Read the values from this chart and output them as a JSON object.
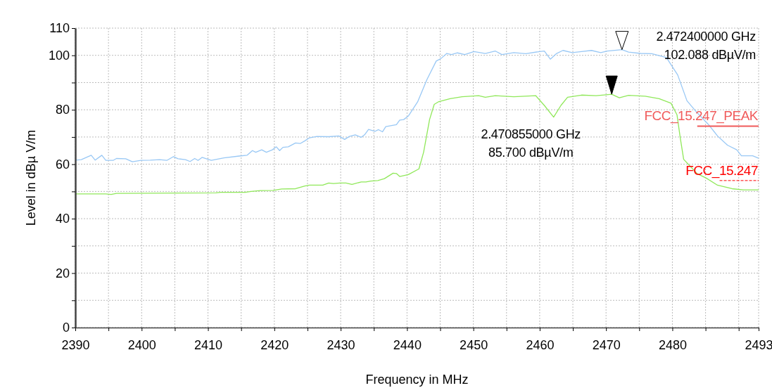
{
  "chart_data": {
    "type": "line",
    "xlabel": "Frequency in MHz",
    "ylabel": "Level in dBµ V/m",
    "xlim": [
      2390,
      2493
    ],
    "xticks": [
      2390,
      {
        "value": 2395,
        "label": null
      },
      2400,
      {
        "value": 2405,
        "label": null
      },
      2410,
      {
        "value": 2415,
        "label": null
      },
      2420,
      {
        "value": 2425,
        "label": null
      },
      2430,
      {
        "value": 2435,
        "label": null
      },
      2440,
      {
        "value": 2445,
        "label": null
      },
      2450,
      {
        "value": 2455,
        "label": null
      },
      2460,
      {
        "value": 2465,
        "label": null
      },
      2470,
      {
        "value": 2475,
        "label": null
      },
      2480,
      {
        "value": 2485,
        "label": null
      },
      {
        "value": 2490,
        "label": null
      },
      2493
    ],
    "ylim": [
      0,
      110
    ],
    "yticks": [
      0,
      {
        "value": 10,
        "label": null
      },
      20,
      {
        "value": 30,
        "label": null
      },
      40,
      {
        "value": 50,
        "label": null
      },
      60,
      {
        "value": 70,
        "label": null
      },
      80,
      {
        "value": 90,
        "label": null
      },
      100,
      110
    ],
    "grid": true,
    "marker": "none",
    "line_style": "solid",
    "series": [
      {
        "color": "#99c8f5",
        "x": [
          2390,
          2390.9,
          2392.4,
          2393.0,
          2394.0,
          2394.6,
          2395.7,
          2396.2,
          2397.6,
          2398.6,
          2399.9,
          2401.3,
          2402.7,
          2403.8,
          2404.8,
          2405.5,
          2406.6,
          2407.3,
          2408.0,
          2408.5,
          2409.1,
          2410.5,
          2412.4,
          2414.7,
          2415.9,
          2416.7,
          2417.2,
          2418.1,
          2418.8,
          2419.7,
          2420.3,
          2420.8,
          2421.3,
          2422.1,
          2423.2,
          2423.9,
          2424.6,
          2425.3,
          2426.4,
          2428.2,
          2429.7,
          2430.6,
          2431.3,
          2432.2,
          2433.1,
          2433.6,
          2434.2,
          2435.2,
          2435.7,
          2436.3,
          2436.8,
          2438.4,
          2438.9,
          2439.5,
          2440.2,
          2441.6,
          2443.0,
          2444.4,
          2445.1,
          2446.0,
          2446.7,
          2447.6,
          2448.7,
          2450.1,
          2451.8,
          2453.3,
          2454.3,
          2456.1,
          2457.9,
          2460.0,
          2460.7,
          2461.6,
          2462.5,
          2463.5,
          2464.9,
          2466.3,
          2467.8,
          2469.2,
          2470.2,
          2472.4,
          2473.4,
          2475.2,
          2476.9,
          2479.1,
          2480.8,
          2482.2,
          2483.7,
          2485.4,
          2486.8,
          2488.3,
          2489.7,
          2490.4,
          2492.1,
          2493.0
        ],
        "values": [
          61.5,
          61.7,
          63.3,
          61.5,
          63.3,
          61.4,
          61.4,
          62.1,
          62.0,
          60.9,
          61.4,
          61.5,
          61.7,
          61.4,
          62.8,
          62.0,
          61.7,
          61.0,
          62.1,
          61.4,
          62.5,
          61.4,
          62.3,
          63.0,
          63.3,
          65.0,
          64.4,
          65.3,
          64.4,
          65.3,
          66.4,
          65.0,
          66.2,
          66.4,
          67.8,
          67.6,
          68.6,
          69.7,
          70.2,
          70.1,
          70.4,
          69.1,
          70.2,
          70.8,
          69.9,
          70.8,
          72.8,
          72.1,
          72.7,
          71.9,
          73.8,
          74.5,
          76.2,
          76.4,
          77.7,
          82.9,
          91.1,
          97.9,
          98.8,
          100.7,
          100.3,
          100.9,
          100.3,
          101.4,
          100.7,
          101.6,
          100.3,
          101.0,
          100.6,
          101.4,
          101.6,
          98.6,
          100.6,
          101.8,
          101.0,
          101.4,
          101.8,
          101.0,
          101.6,
          102.1,
          101.2,
          100.7,
          100.6,
          99.2,
          92.8,
          83.3,
          79.0,
          74.7,
          70.4,
          67.0,
          65.3,
          63.1,
          63.1,
          62.2
        ]
      },
      {
        "color": "#90e85a",
        "x": [
          2390,
          2394.6,
          2395.4,
          2396.2,
          2411.2,
          2411.9,
          2415.6,
          2416.5,
          2417.9,
          2419.8,
          2421.1,
          2423.2,
          2424.6,
          2425.3,
          2427.3,
          2428.2,
          2428.9,
          2429.9,
          2430.8,
          2431.7,
          2433.1,
          2433.8,
          2434.5,
          2435.6,
          2436.6,
          2437.9,
          2438.4,
          2438.9,
          2440.2,
          2441.8,
          2442.5,
          2443.4,
          2444.1,
          2444.8,
          2446.5,
          2448.3,
          2450.8,
          2451.8,
          2453.3,
          2456.1,
          2459.4,
          2460.7,
          2462.1,
          2463.2,
          2464.2,
          2466.3,
          2468.5,
          2470.855,
          2472.0,
          2473.4,
          2475.9,
          2478.0,
          2479.8,
          2480.7,
          2481.2,
          2481.7,
          2483.7,
          2485.1,
          2486.8,
          2489.0,
          2490.7,
          2493.0
        ],
        "values": [
          49.1,
          49.1,
          48.9,
          49.3,
          49.5,
          49.7,
          49.7,
          50.0,
          50.3,
          50.4,
          50.9,
          51.0,
          52.0,
          52.3,
          52.3,
          53.1,
          52.9,
          53.1,
          53.1,
          52.6,
          53.5,
          53.5,
          53.8,
          54.0,
          54.7,
          56.7,
          56.6,
          55.5,
          56.2,
          58.3,
          64.4,
          76.4,
          82.0,
          83.0,
          84.1,
          84.8,
          85.2,
          84.6,
          85.2,
          84.8,
          85.2,
          81.6,
          77.3,
          81.6,
          84.6,
          85.4,
          85.2,
          85.7,
          84.4,
          85.3,
          85.0,
          84.1,
          82.4,
          78.1,
          69.5,
          61.8,
          56.6,
          54.9,
          52.3,
          51.0,
          50.6,
          50.6
        ]
      }
    ],
    "ref_lines": [
      {
        "axis": "y",
        "value": 74,
        "label": "FCC_15.247_PEAK",
        "color": "#f05a5a",
        "line_style": "solid"
      },
      {
        "axis": "y",
        "value": 54,
        "label": "FCC_15.247",
        "color": "#ff0000",
        "line_style": "dashed"
      }
    ],
    "annotations": [
      "2.472400000 GHz\n102.088 dBµV/m",
      "2.470855000 GHz\n85.700 dBµV/m"
    ]
  }
}
